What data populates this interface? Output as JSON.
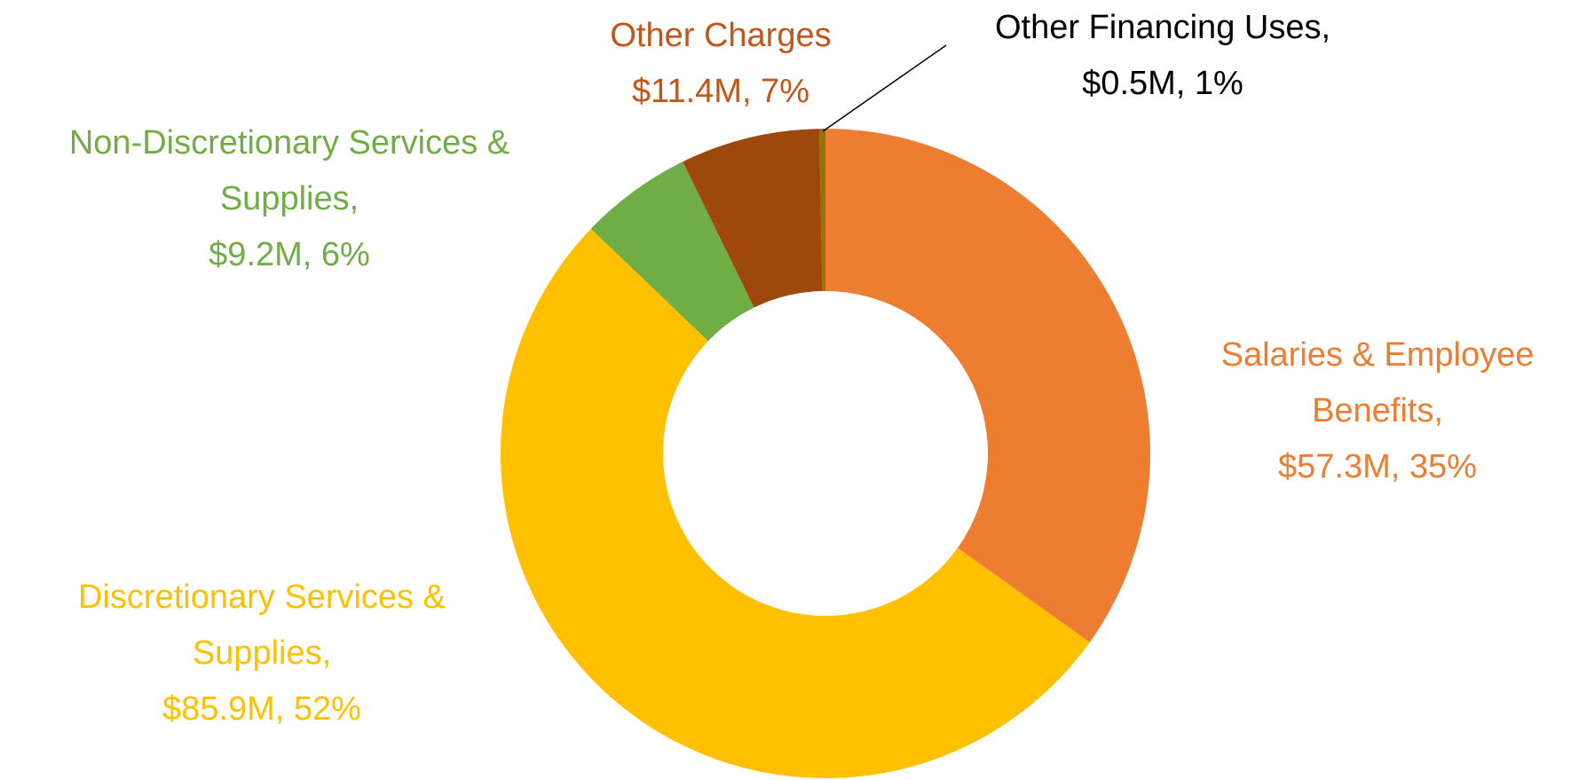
{
  "chart_data": {
    "type": "donut",
    "categories": [
      "Salaries & Employee Benefits,",
      "Discretionary Services & Supplies,",
      "Non-Discretionary Services & Supplies,",
      "Other Charges",
      "Other Financing Uses,"
    ],
    "values": [
      57.3,
      85.9,
      9.2,
      11.4,
      0.5
    ],
    "value_labels": [
      "$57.3M, 35%",
      "$85.9M, 52%",
      "$9.2M, 6%",
      "$11.4M, 7%",
      "$0.5M, 1%"
    ],
    "colors": [
      "#ED7D31",
      "#FFC000",
      "#70AD47",
      "#9E480E",
      "#997300"
    ],
    "label_colors": [
      "#ED7D31",
      "#FFC000",
      "#70AD47",
      "#C0561A",
      "#000000"
    ]
  }
}
